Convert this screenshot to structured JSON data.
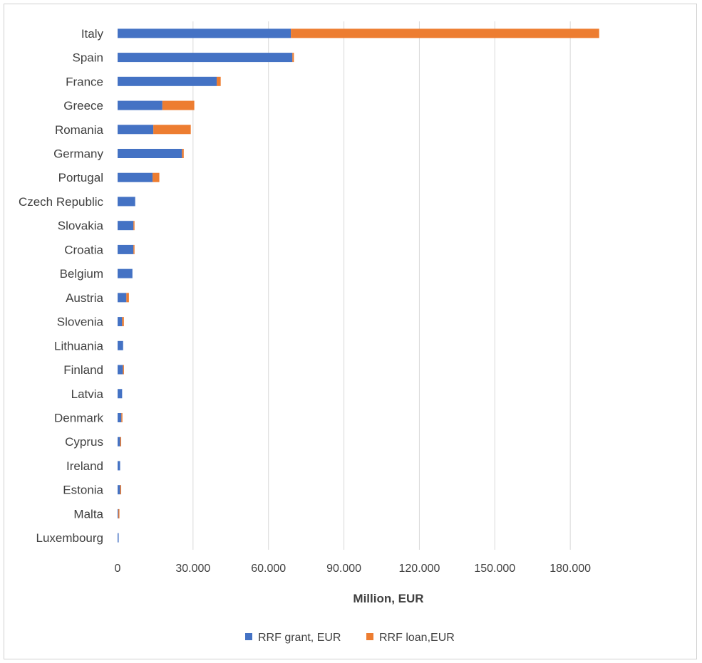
{
  "chart_data": {
    "type": "bar",
    "orientation": "horizontal",
    "stacked": true,
    "categories": [
      "Italy",
      "Spain",
      "France",
      "Greece",
      "Romania",
      "Germany",
      "Portugal",
      "Czech Republic",
      "Slovakia",
      "Croatia",
      "Belgium",
      "Austria",
      "Slovenia",
      "Lithuania",
      "Finland",
      "Latvia",
      "Denmark",
      "Cyprus",
      "Ireland",
      "Estonia",
      "Malta",
      "Luxembourg"
    ],
    "series": [
      {
        "name": "RRF grant, EUR",
        "color": "#4472c4",
        "values": [
          68900,
          69500,
          39400,
          17800,
          14200,
          25600,
          13900,
          7000,
          6300,
          6300,
          5900,
          3500,
          1800,
          2200,
          2100,
          1800,
          1500,
          1000,
          1000,
          1000,
          300,
          100
        ]
      },
      {
        "name": "RRF loan,EUR",
        "color": "#ed7d31",
        "values": [
          122600,
          600,
          1600,
          12700,
          14900,
          700,
          2700,
          0,
          300,
          300,
          0,
          1000,
          700,
          0,
          300,
          0,
          300,
          200,
          0,
          300,
          200,
          0
        ]
      }
    ],
    "xlabel": "Million, EUR",
    "xticks": [
      0,
      30000,
      60000,
      90000,
      120000,
      150000,
      180000
    ],
    "xtick_labels": [
      "0",
      "30.000",
      "60.000",
      "90.000",
      "120.000",
      "150.000",
      "180.000"
    ],
    "xlim": [
      0,
      210000
    ],
    "grid": "vertical",
    "legend": "bottom"
  }
}
